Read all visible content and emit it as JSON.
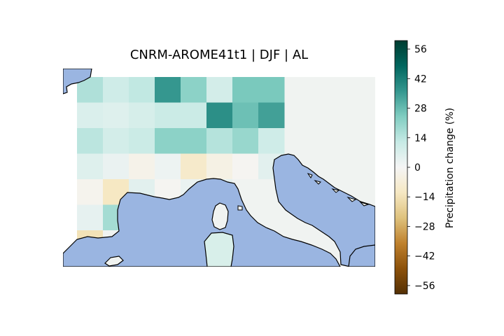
{
  "title": "CNRM-AROME41t1 | DJF | AL",
  "colorbar": {
    "label": "Precipitation change (%)",
    "ticks": [
      "56",
      "42",
      "28",
      "14",
      "0",
      "−14",
      "−28",
      "−42",
      "−56"
    ],
    "tick_values": [
      56,
      42,
      28,
      14,
      0,
      -14,
      -28,
      -42,
      -56
    ],
    "range": [
      -60,
      60
    ],
    "colormap": "BrBG"
  },
  "colors": {
    "sea": "#9ab5e1",
    "coast": "#000000",
    "grid_missing": "#f0f3f1"
  },
  "grid": {
    "cols": 8,
    "rows": 7,
    "values": [
      [
        16,
        10,
        13,
        36,
        22,
        9,
        25,
        25
      ],
      [
        7,
        6,
        8,
        11,
        11,
        38,
        27,
        34
      ],
      [
        14,
        9,
        11,
        22,
        22,
        15,
        20,
        10
      ],
      [
        6,
        3,
        -3,
        2,
        -10,
        -4,
        -1,
        5
      ],
      [
        -2,
        -12,
        5,
        -1,
        3,
        4,
        0,
        0
      ],
      [
        4,
        18,
        0,
        0,
        0,
        0,
        0,
        0
      ],
      [
        -14,
        0,
        0,
        0,
        0,
        0,
        6,
        0
      ]
    ]
  }
}
